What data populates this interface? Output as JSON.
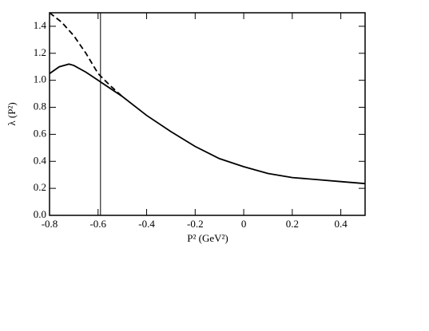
{
  "chart_data": {
    "type": "line",
    "xlabel": "P² (GeV²)",
    "ylabel": "λ (P²)",
    "xlim": [
      -0.8,
      0.5
    ],
    "ylim": [
      0,
      1.5
    ],
    "xticks": [
      -0.8,
      -0.6,
      -0.4,
      -0.2,
      0,
      0.2,
      0.4
    ],
    "yticks": [
      {
        "value": 0,
        "label": "0.0"
      },
      0.2,
      0.4,
      0.6,
      0.8,
      {
        "value": 1,
        "label": "1.0"
      },
      1.2,
      1.4
    ],
    "vline_x": -0.59,
    "series": [
      {
        "color": "#000000",
        "dash": "solid",
        "x": [
          -0.8,
          -0.76,
          -0.72,
          -0.7,
          -0.65,
          -0.6,
          -0.5,
          -0.4,
          -0.3,
          -0.2,
          -0.1,
          0,
          0.1,
          0.2,
          0.3,
          0.4,
          0.5
        ],
        "values": [
          1.05,
          1.1,
          1.12,
          1.11,
          1.06,
          1.0,
          0.88,
          0.74,
          0.62,
          0.51,
          0.42,
          0.36,
          0.31,
          0.28,
          0.265,
          0.25,
          0.235
        ]
      },
      {
        "color": "#000000",
        "dash": "dashed",
        "x": [
          -0.8,
          -0.75,
          -0.7,
          -0.65,
          -0.6,
          -0.55,
          -0.5
        ],
        "values": [
          1.5,
          1.43,
          1.33,
          1.2,
          1.05,
          0.96,
          0.88
        ]
      }
    ]
  }
}
